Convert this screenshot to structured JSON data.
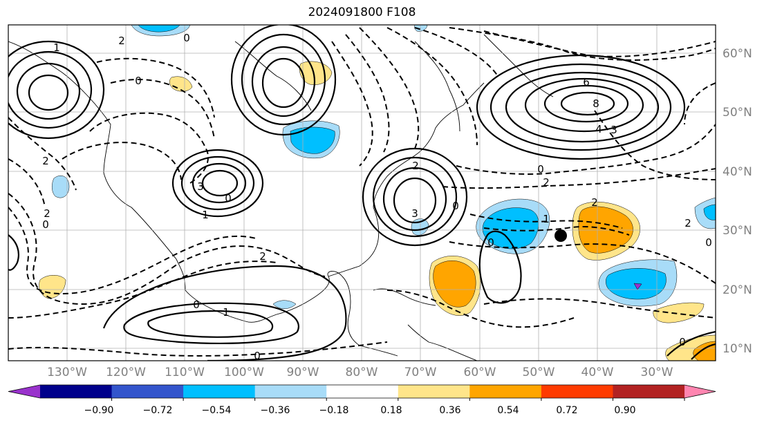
{
  "title": "2024091800 F108",
  "lat_labels": [
    "60°N",
    "50°N",
    "40°N",
    "30°N",
    "20°N",
    "10°N"
  ],
  "lon_labels": [
    "130°W",
    "120°W",
    "110°W",
    "100°W",
    "90°W",
    "80°W",
    "70°W",
    "60°W",
    "50°W",
    "40°W",
    "30°W"
  ],
  "contour_labels": [
    "0",
    "1",
    "2",
    "2",
    "0",
    "0",
    "2",
    "6",
    "8",
    "4",
    "3",
    "0",
    "2",
    "3",
    "2",
    "0",
    "3",
    "0",
    "1",
    "0",
    "1",
    "2",
    "0",
    "2",
    "0",
    "2",
    "0",
    "0",
    "1"
  ],
  "colorbar": {
    "ticks": [
      "−0.90",
      "−0.72",
      "−0.54",
      "−0.36",
      "−0.18",
      "0.18",
      "0.36",
      "0.54",
      "0.72",
      "0.90"
    ],
    "colors": [
      "#9932cc",
      "#00008b",
      "#3355cc",
      "#00bfff",
      "#a8dcf8",
      "#ffffff",
      "#ffe58a",
      "#ffa500",
      "#ff3b00",
      "#b22222",
      "#ff85b0"
    ]
  },
  "fill_colors": {
    "light_blue": "#a8dcf8",
    "blue": "#00bfff",
    "purple": "#9932cc",
    "yellow": "#ffe58a",
    "orange": "#ffa500"
  }
}
